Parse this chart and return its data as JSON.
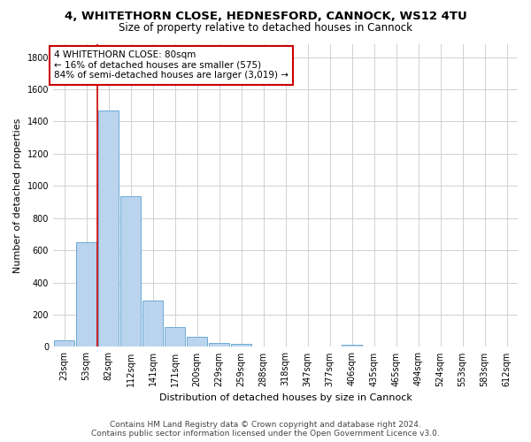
{
  "title1": "4, WHITETHORN CLOSE, HEDNESFORD, CANNOCK, WS12 4TU",
  "title2": "Size of property relative to detached houses in Cannock",
  "xlabel": "Distribution of detached houses by size in Cannock",
  "ylabel": "Number of detached properties",
  "footnote1": "Contains HM Land Registry data © Crown copyright and database right 2024.",
  "footnote2": "Contains public sector information licensed under the Open Government Licence v3.0.",
  "annotation_line1": "4 WHITETHORN CLOSE: 80sqm",
  "annotation_line2": "← 16% of detached houses are smaller (575)",
  "annotation_line3": "84% of semi-detached houses are larger (3,019) →",
  "property_size_bin": 2,
  "bar_color": "#bad4ee",
  "bar_edge_color": "#6aaad4",
  "red_line_color": "#cc0000",
  "annotation_box_color": "#cc0000",
  "grid_color": "#d0d0d0",
  "background_color": "#ffffff",
  "categories": [
    "23sqm",
    "53sqm",
    "82sqm",
    "112sqm",
    "141sqm",
    "171sqm",
    "200sqm",
    "229sqm",
    "259sqm",
    "288sqm",
    "318sqm",
    "347sqm",
    "377sqm",
    "406sqm",
    "435sqm",
    "465sqm",
    "494sqm",
    "524sqm",
    "553sqm",
    "583sqm",
    "612sqm"
  ],
  "values": [
    40,
    650,
    1470,
    935,
    290,
    125,
    65,
    22,
    18,
    0,
    0,
    0,
    0,
    15,
    0,
    0,
    0,
    0,
    0,
    0,
    0
  ],
  "ylim": [
    0,
    1880
  ],
  "yticks": [
    0,
    200,
    400,
    600,
    800,
    1000,
    1200,
    1400,
    1600,
    1800
  ],
  "title1_fontsize": 9.5,
  "title2_fontsize": 8.5,
  "xlabel_fontsize": 8,
  "ylabel_fontsize": 8,
  "tick_fontsize": 7,
  "annotation_fontsize": 7.5,
  "footnote_fontsize": 6.5
}
